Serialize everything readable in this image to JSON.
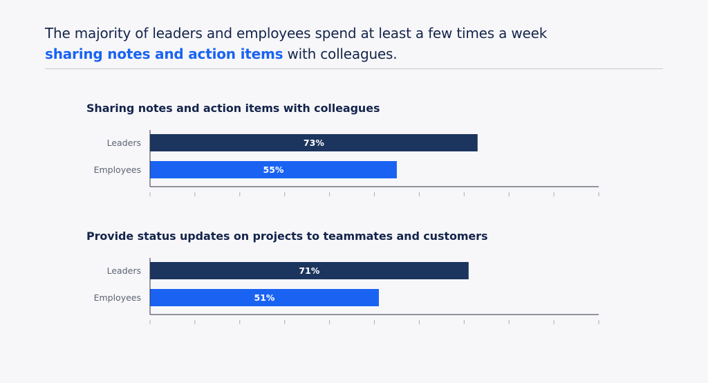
{
  "headline": {
    "part1": "The majority of leaders and employees spend at least a few times a week",
    "highlight": "sharing notes and action items",
    "part2": " with colleagues."
  },
  "colors": {
    "leaders": "#1c355e",
    "employees": "#1a63f2",
    "axis": "#2a3040",
    "tick": "#a8abb5"
  },
  "chart_data": [
    {
      "type": "bar",
      "orientation": "horizontal",
      "title": "Sharing notes and action items with colleagues",
      "categories": [
        "Leaders",
        "Employees"
      ],
      "values": [
        73,
        55
      ],
      "value_labels": [
        "73%",
        "55%"
      ],
      "xlim": [
        0,
        100
      ],
      "tick_count": 11,
      "grid": false
    },
    {
      "type": "bar",
      "orientation": "horizontal",
      "title": "Provide status updates on projects to teammates and customers",
      "categories": [
        "Leaders",
        "Employees"
      ],
      "values": [
        71,
        51
      ],
      "value_labels": [
        "71%",
        "51%"
      ],
      "xlim": [
        0,
        100
      ],
      "tick_count": 11,
      "grid": false
    }
  ]
}
